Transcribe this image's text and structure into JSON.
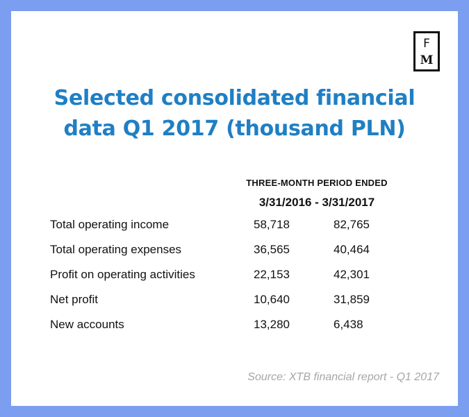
{
  "logo": {
    "letter_top": "F",
    "letter_bottom": "M"
  },
  "title": {
    "line1": "Selected consolidated financial",
    "line2": "data Q1 2017 (thousand PLN)"
  },
  "table": {
    "period_label": "THREE-MONTH PERIOD ENDED",
    "period_dates": "3/31/2016 - 3/31/2017",
    "rows": [
      {
        "label": "Total operating income",
        "v2016": "58,718",
        "v2017": "82,765"
      },
      {
        "label": "Total operating expenses",
        "v2016": "36,565",
        "v2017": "40,464"
      },
      {
        "label": "Profit on operating activities",
        "v2016": "22,153",
        "v2017": "42,301"
      },
      {
        "label": "Net profit",
        "v2016": "10,640",
        "v2017": "31,859"
      },
      {
        "label": "New accounts",
        "v2016": "13,280",
        "v2017": "6,438"
      }
    ]
  },
  "source": "Source: XTB financial report - Q1 2017",
  "colors": {
    "background": "#7b9ef0",
    "card": "#ffffff",
    "title": "#1f7fc4",
    "text": "#111111",
    "source": "#a6a6a6"
  }
}
